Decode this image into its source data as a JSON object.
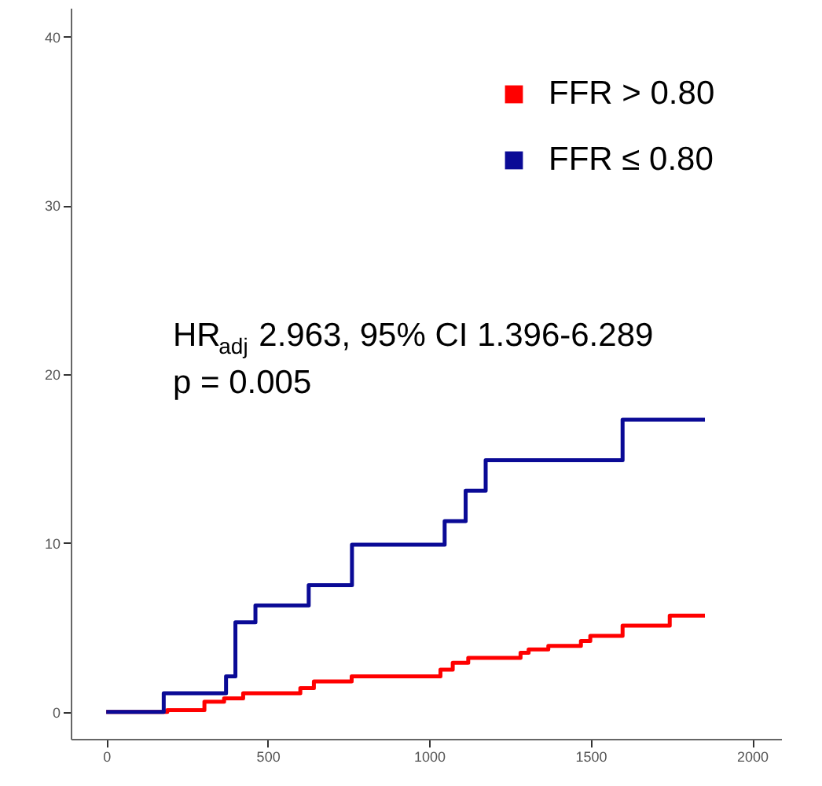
{
  "chart_data": {
    "type": "step",
    "xlim": [
      -110,
      2090
    ],
    "ylim": [
      -1.6,
      41.7
    ],
    "xticks": [
      0,
      500,
      1000,
      1500,
      2000
    ],
    "yticks": [
      0,
      10,
      20,
      30,
      40
    ],
    "grid": false,
    "legend": "top right",
    "line_style": "solid",
    "marker": "none",
    "annotations": [
      "HR$_{adj}$ 2.963, 95% CI 1.396-6.289",
      "p = 0.005"
    ],
    "series": [
      {
        "name": "FFR > 0.80",
        "color": "#ff0000",
        "x": [
          0,
          189,
          304,
          365,
          424,
          601,
          643,
          760,
          1035,
          1073,
          1121,
          1283,
          1308,
          1369,
          1470,
          1499,
          1599,
          1745,
          1854
        ],
        "values": [
          0,
          0.1,
          0.6,
          0.8,
          1.1,
          1.4,
          1.8,
          2.1,
          2.5,
          2.9,
          3.2,
          3.5,
          3.7,
          3.9,
          4.2,
          4.5,
          5.1,
          5.7,
          5.7
        ]
      },
      {
        "name": "FFR ≤ 0.80",
        "color": "#0a0a96",
        "x": [
          0,
          178,
          371,
          400,
          462,
          627,
          761,
          1048,
          1113,
          1175,
          1599,
          1854
        ],
        "values": [
          0,
          1.1,
          2.1,
          5.3,
          6.3,
          7.5,
          9.9,
          11.3,
          13.1,
          14.9,
          17.3,
          17.3
        ]
      }
    ]
  }
}
